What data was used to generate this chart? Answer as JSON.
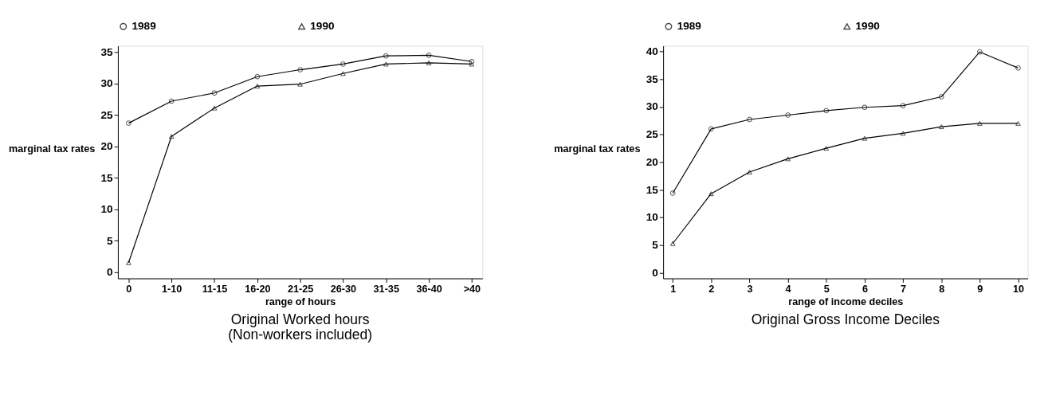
{
  "chart_data": [
    {
      "type": "line",
      "title": "Original Worked hours\n(Non-workers included)",
      "xlabel": "range of hours",
      "ylabel": "marginal tax rates",
      "categories": [
        "0",
        "1-10",
        "11-15",
        "16-20",
        "21-25",
        "26-30",
        "31-35",
        "36-40",
        ">40"
      ],
      "series": [
        {
          "name": "1989",
          "color": "#000000",
          "marker": "circle",
          "values": [
            23.7,
            27.2,
            28.5,
            31.1,
            32.2,
            33.1,
            34.4,
            34.5,
            33.5
          ]
        },
        {
          "name": "1990",
          "color": "#000000",
          "marker": "triangle",
          "values": [
            1.5,
            21.6,
            26.1,
            29.6,
            29.9,
            31.6,
            33.1,
            33.3,
            33.1
          ]
        }
      ],
      "ylim": [
        -1,
        36
      ],
      "yticks": [
        0,
        5,
        10,
        15,
        20,
        25,
        30,
        35
      ],
      "grid": false,
      "legend": "top"
    },
    {
      "type": "line",
      "title": "Original Gross Income Deciles",
      "xlabel": "range of income deciles",
      "ylabel": "marginal tax rates",
      "categories": [
        "1",
        "2",
        "3",
        "4",
        "5",
        "6",
        "7",
        "8",
        "9",
        "10"
      ],
      "series": [
        {
          "name": "1989",
          "color": "#000000",
          "marker": "circle",
          "values": [
            14.4,
            26.0,
            27.7,
            28.5,
            29.3,
            29.9,
            30.2,
            31.8,
            39.9,
            37.0
          ]
        },
        {
          "name": "1990",
          "color": "#000000",
          "marker": "triangle",
          "values": [
            5.3,
            14.3,
            18.2,
            20.6,
            22.5,
            24.3,
            25.2,
            26.4,
            27.0,
            27.0
          ]
        }
      ],
      "ylim": [
        -1,
        41
      ],
      "yticks": [
        0,
        5,
        10,
        15,
        20,
        25,
        30,
        35,
        40
      ],
      "grid": false,
      "legend": "top"
    }
  ]
}
